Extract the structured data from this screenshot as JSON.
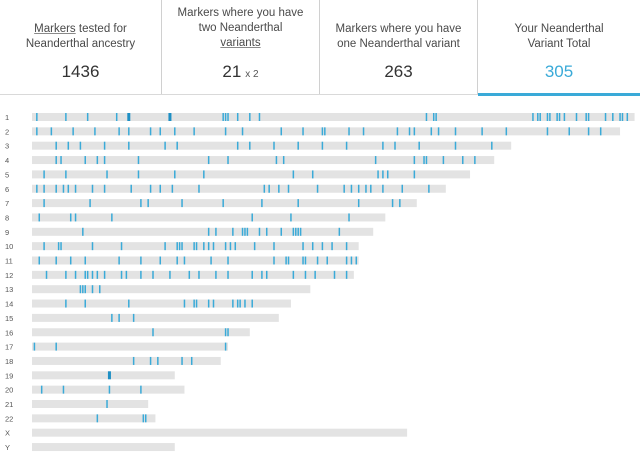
{
  "stats": [
    {
      "label_pre": "",
      "label_link": "Markers",
      "label_post": " tested for",
      "label_line2": "Neanderthal ancestry",
      "value": "1436",
      "multiplier": ""
    },
    {
      "label_pre": "Markers where you have",
      "label_line2": "two Neanderthal",
      "label_link": "variants",
      "value": "21",
      "multiplier": "x 2"
    },
    {
      "label_pre": "Markers where you have",
      "label_line2": "one Neanderthal variant",
      "value": "263",
      "multiplier": ""
    },
    {
      "label_pre": "Your Neanderthal",
      "label_line2": "Variant Total",
      "value": "305",
      "multiplier": ""
    }
  ],
  "colors": {
    "accent": "#3aaad8",
    "chrom_bar": "#e3e3e3",
    "variant_one": "#3aaad8",
    "variant_two": "#1e8fc4"
  },
  "chart_data": {
    "type": "chromosome-painting",
    "title": "",
    "length_unit": "Mb",
    "chromosomes": [
      {
        "label": "1",
        "length": 249,
        "markers": [
          2,
          14,
          23,
          35,
          40,
          40,
          57,
          57,
          79,
          80,
          81,
          85,
          90,
          94,
          163,
          166,
          167,
          207,
          209,
          210,
          213,
          214,
          217,
          218,
          220,
          225,
          229,
          230,
          237,
          240,
          243,
          244,
          246
        ]
      },
      {
        "label": "2",
        "length": 243,
        "markers": [
          2,
          8,
          17,
          26,
          36,
          40,
          49,
          53,
          59,
          67,
          80,
          87,
          103,
          112,
          120,
          121,
          131,
          137,
          151,
          156,
          158,
          165,
          168,
          175,
          186,
          196,
          213,
          222,
          230,
          235
        ]
      },
      {
        "label": "3",
        "length": 198,
        "markers": [
          10,
          15,
          20,
          30,
          40,
          55,
          60,
          85,
          90,
          100,
          110,
          120,
          130,
          145,
          150,
          160,
          175,
          190
        ]
      },
      {
        "label": "4",
        "length": 191,
        "markers": [
          10,
          12,
          22,
          27,
          30,
          44,
          73,
          81,
          101,
          104,
          142,
          158,
          162,
          163,
          170,
          178,
          183
        ]
      },
      {
        "label": "5",
        "length": 181,
        "markers": [
          5,
          14,
          31,
          44,
          59,
          71,
          108,
          116,
          143,
          145,
          147,
          158
        ]
      },
      {
        "label": "6",
        "length": 171,
        "markers": [
          2,
          5,
          10,
          13,
          15,
          18,
          25,
          30,
          41,
          49,
          53,
          58,
          69,
          96,
          98,
          102,
          106,
          118,
          129,
          132,
          135,
          138,
          140,
          145,
          153,
          164
        ]
      },
      {
        "label": "7",
        "length": 159,
        "markers": [
          5,
          24,
          45,
          48,
          62,
          79,
          95,
          110,
          135,
          149,
          152
        ]
      },
      {
        "label": "8",
        "length": 146,
        "markers": [
          3,
          16,
          18,
          33,
          91,
          107,
          131
        ]
      },
      {
        "label": "9",
        "length": 141,
        "markers": [
          21,
          73,
          76,
          83,
          87,
          88,
          89,
          94,
          97,
          103,
          108,
          109,
          110,
          111,
          127
        ]
      },
      {
        "label": "10",
        "length": 135,
        "markers": [
          5,
          11,
          12,
          25,
          37,
          55,
          60,
          61,
          62,
          67,
          68,
          71,
          73,
          75,
          80,
          82,
          84,
          92,
          100,
          112,
          116,
          120,
          124,
          130
        ]
      },
      {
        "label": "11",
        "length": 135,
        "markers": [
          3,
          10,
          16,
          22,
          36,
          45,
          53,
          60,
          63,
          74,
          81,
          100,
          105,
          106,
          112,
          113,
          118,
          122,
          130,
          132,
          134
        ]
      },
      {
        "label": "12",
        "length": 133,
        "markers": [
          6,
          14,
          18,
          22,
          23,
          25,
          27,
          30,
          37,
          39,
          45,
          50,
          57,
          65,
          69,
          76,
          81,
          91,
          95,
          97,
          108,
          113,
          117,
          125,
          130
        ]
      },
      {
        "label": "13",
        "length": 115,
        "markers": [
          20,
          21,
          22,
          25,
          28
        ]
      },
      {
        "label": "14",
        "length": 107,
        "markers": [
          14,
          22,
          40,
          63,
          67,
          68,
          73,
          75,
          83,
          85,
          86,
          88,
          91
        ]
      },
      {
        "label": "15",
        "length": 102,
        "markers": [
          33,
          36,
          42
        ]
      },
      {
        "label": "16",
        "length": 90,
        "markers": [
          50,
          80,
          81
        ]
      },
      {
        "label": "17",
        "length": 81,
        "markers": [
          1,
          10,
          80
        ]
      },
      {
        "label": "18",
        "length": 78,
        "markers": [
          42,
          49,
          52,
          62,
          66
        ]
      },
      {
        "label": "19",
        "length": 59,
        "markers": [
          32,
          32
        ]
      },
      {
        "label": "20",
        "length": 63,
        "markers": [
          4,
          13,
          32,
          45
        ]
      },
      {
        "label": "21",
        "length": 48,
        "markers": [
          31
        ]
      },
      {
        "label": "22",
        "length": 51,
        "markers": [
          27,
          46,
          47
        ]
      },
      {
        "label": "X",
        "length": 155,
        "markers": []
      },
      {
        "label": "Y",
        "length": 59,
        "markers": []
      }
    ]
  }
}
